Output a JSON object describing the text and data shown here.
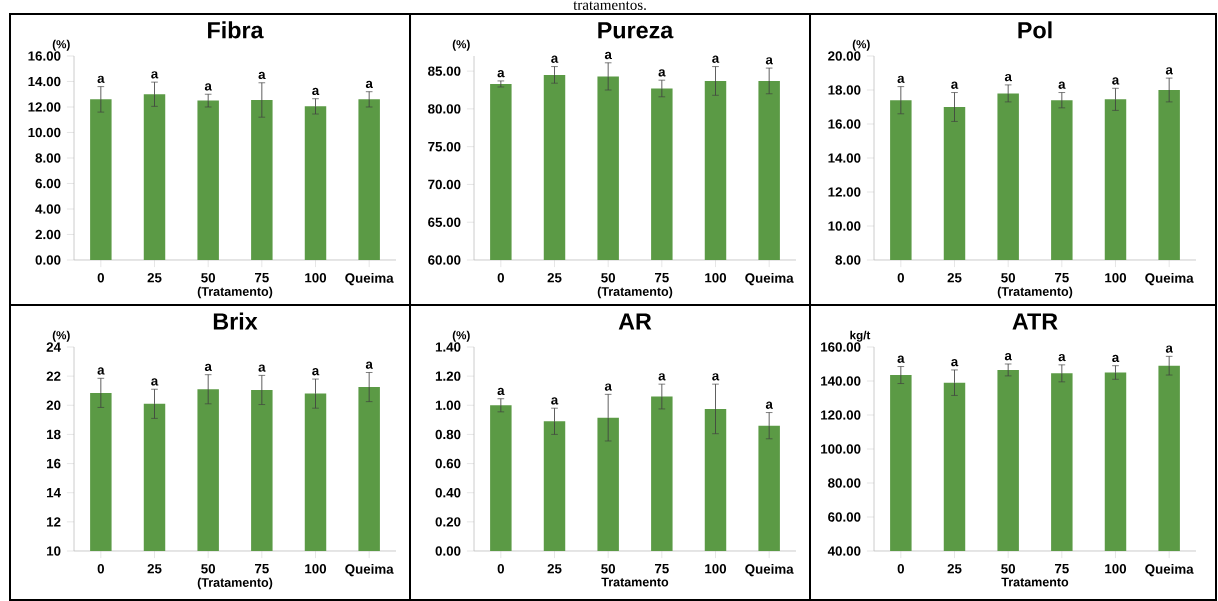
{
  "chart_data": [
    {
      "type": "bar",
      "title": "Fibra",
      "ylabel": "(%)",
      "xlabel": "(Tratamento)",
      "color": "#5b9a45",
      "categories": [
        "0",
        "25",
        "50",
        "75",
        "100",
        "Queima"
      ],
      "values": [
        12.6,
        13.0,
        12.5,
        12.55,
        12.05,
        12.6
      ],
      "errors": [
        1.0,
        0.95,
        0.5,
        1.35,
        0.6,
        0.6
      ],
      "ylim": [
        0,
        16
      ],
      "yticks": [
        {
          "value": 0,
          "label": "0.00"
        },
        {
          "value": 2,
          "label": "2.00"
        },
        {
          "value": 4,
          "label": "4.00"
        },
        {
          "value": 6,
          "label": "6.00"
        },
        {
          "value": 8,
          "label": "8.00"
        },
        {
          "value": 10,
          "label": "10.00"
        },
        {
          "value": 12,
          "label": "12.00"
        },
        {
          "value": 14,
          "label": "14.00"
        },
        {
          "value": 16,
          "label": "16.00"
        }
      ],
      "annotations": [
        {
          "text": "a",
          "x": "0",
          "y": 12.6
        },
        {
          "text": "a",
          "x": "25",
          "y": 13.0
        },
        {
          "text": "a",
          "x": "50",
          "y": 12.5
        },
        {
          "text": "a",
          "x": "75",
          "y": 12.55
        },
        {
          "text": "a",
          "x": "100",
          "y": 12.05
        },
        {
          "text": "a",
          "x": "Queima",
          "y": 12.6
        }
      ]
    },
    {
      "type": "bar",
      "title": "Pureza",
      "ylabel": "(%)",
      "xlabel": "(Tratamento)",
      "color": "#5b9a45",
      "categories": [
        "0",
        "25",
        "50",
        "75",
        "100",
        "Queima"
      ],
      "values": [
        83.3,
        84.5,
        84.3,
        82.7,
        83.7,
        83.7
      ],
      "errors": [
        0.4,
        1.1,
        1.8,
        1.1,
        1.9,
        1.7
      ],
      "ylim": [
        60,
        87
      ],
      "yticks": [
        {
          "value": 60,
          "label": "60.00"
        },
        {
          "value": 65,
          "label": "65.00"
        },
        {
          "value": 70,
          "label": "70.00"
        },
        {
          "value": 75,
          "label": "75.00"
        },
        {
          "value": 80,
          "label": "80.00"
        },
        {
          "value": 85,
          "label": "85.00"
        }
      ],
      "annotations": [
        "tratamentos.",
        {
          "text": "a",
          "x": "0",
          "y": 83.3
        },
        {
          "text": "a",
          "x": "25",
          "y": 84.5
        },
        {
          "text": "a",
          "x": "50",
          "y": 84.3
        },
        {
          "text": "a",
          "x": "75",
          "y": 82.7
        },
        {
          "text": "a",
          "x": "100",
          "y": 83.7
        },
        {
          "text": "a",
          "x": "Queima",
          "y": 83.7
        }
      ]
    },
    {
      "type": "bar",
      "title": "Pol",
      "ylabel": "(%)",
      "xlabel": "(Tratamento)",
      "color": "#5b9a45",
      "categories": [
        "0",
        "25",
        "50",
        "75",
        "100",
        "Queima"
      ],
      "values": [
        17.4,
        17.0,
        17.8,
        17.4,
        17.45,
        18.0
      ],
      "errors": [
        0.8,
        0.85,
        0.5,
        0.45,
        0.65,
        0.7
      ],
      "ylim": [
        8,
        20
      ],
      "yticks": [
        {
          "value": 8,
          "label": "8.00"
        },
        {
          "value": 10,
          "label": "10.00"
        },
        {
          "value": 12,
          "label": "12.00"
        },
        {
          "value": 14,
          "label": "14.00"
        },
        {
          "value": 16,
          "label": "16.00"
        },
        {
          "value": 18,
          "label": "18.00"
        },
        {
          "value": 20,
          "label": "20.00"
        }
      ],
      "annotations": [
        {
          "text": "a",
          "x": "0",
          "y": 17.4
        },
        {
          "text": "a",
          "x": "25",
          "y": 17.0
        },
        {
          "text": "a",
          "x": "50",
          "y": 17.8
        },
        {
          "text": "a",
          "x": "75",
          "y": 17.4
        },
        {
          "text": "a",
          "x": "100",
          "y": 17.45
        },
        {
          "text": "a",
          "x": "Queima",
          "y": 18.0
        }
      ]
    },
    {
      "type": "bar",
      "title": "Brix",
      "ylabel": "(%)",
      "xlabel": "(Tratamento)",
      "color": "#5b9a45",
      "categories": [
        "0",
        "25",
        "50",
        "75",
        "100",
        "Queima"
      ],
      "values": [
        20.85,
        20.1,
        21.1,
        21.05,
        20.8,
        21.25
      ],
      "errors": [
        1.0,
        1.0,
        1.0,
        1.0,
        1.0,
        1.0
      ],
      "ylim": [
        10,
        24
      ],
      "yticks": [
        10,
        12,
        14,
        16,
        18,
        20,
        22,
        24
      ],
      "annotations": [
        {
          "text": "a",
          "x": "0",
          "y": 20.85
        },
        {
          "text": "a",
          "x": "25",
          "y": 20.1
        },
        {
          "text": "a",
          "x": "50",
          "y": 21.1
        },
        {
          "text": "a",
          "x": "75",
          "y": 21.05
        },
        {
          "text": "a",
          "x": "100",
          "y": 20.8
        },
        {
          "text": "a",
          "x": "Queima",
          "y": 21.25
        }
      ]
    },
    {
      "type": "bar",
      "title": "AR",
      "ylabel": "(%)",
      "xlabel": "Tratamento",
      "color": "#5b9a45",
      "categories": [
        "0",
        "25",
        "50",
        "75",
        "100",
        "Queima"
      ],
      "values": [
        1.0,
        0.89,
        0.915,
        1.06,
        0.975,
        0.86
      ],
      "errors": [
        0.045,
        0.09,
        0.16,
        0.085,
        0.17,
        0.09
      ],
      "ylim": [
        0,
        1.4
      ],
      "yticks": [
        {
          "value": 0,
          "label": "0.00"
        },
        {
          "value": 0.2,
          "label": "0.20"
        },
        {
          "value": 0.4,
          "label": "0.40"
        },
        {
          "value": 0.6,
          "label": "0.60"
        },
        {
          "value": 0.8,
          "label": "0.80"
        },
        {
          "value": 1.0,
          "label": "1.00"
        },
        {
          "value": 1.2,
          "label": "1.20"
        },
        {
          "value": 1.4,
          "label": "1.40"
        }
      ],
      "annotations": [
        {
          "text": "a",
          "x": "0",
          "y": 1.0
        },
        {
          "text": "a",
          "x": "25",
          "y": 0.89
        },
        {
          "text": "a",
          "x": "50",
          "y": 0.915
        },
        {
          "text": "a",
          "x": "75",
          "y": 1.06
        },
        {
          "text": "a",
          "x": "100",
          "y": 0.975
        },
        {
          "text": "a",
          "x": "Queima",
          "y": 0.86
        }
      ]
    },
    {
      "type": "bar",
      "title": "ATR",
      "ylabel": "kg/t",
      "xlabel": "Tratamento",
      "color": "#5b9a45",
      "categories": [
        "0",
        "25",
        "50",
        "75",
        "100",
        "Queima"
      ],
      "values": [
        143.5,
        139,
        146.5,
        144.5,
        145,
        149
      ],
      "errors": [
        5,
        7.5,
        3.5,
        5,
        4,
        5.5
      ],
      "ylim": [
        40,
        160
      ],
      "yticks": [
        {
          "value": 40,
          "label": "40.00"
        },
        {
          "value": 60,
          "label": "60.00"
        },
        {
          "value": 80,
          "label": "80.00"
        },
        {
          "value": 100,
          "label": "100.00"
        },
        {
          "value": 120,
          "label": "120.00"
        },
        {
          "value": 140,
          "label": "140.00"
        },
        {
          "value": 160,
          "label": "160.00"
        }
      ],
      "annotations": [
        {
          "text": "a",
          "x": "0",
          "y": 143.5
        },
        {
          "text": "a",
          "x": "25",
          "y": 139
        },
        {
          "text": "a",
          "x": "50",
          "y": 146.5
        },
        {
          "text": "a",
          "x": "75",
          "y": 144.5
        },
        {
          "text": "a",
          "x": "100",
          "y": 145
        },
        {
          "text": "a",
          "x": "Queima",
          "y": 149
        }
      ]
    }
  ]
}
